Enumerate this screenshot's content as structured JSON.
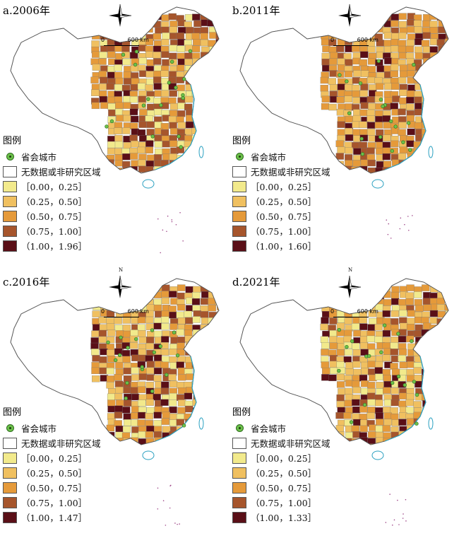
{
  "panels": [
    {
      "title": "a.2006年",
      "legend_title": "图例",
      "legend": [
        {
          "kind": "dot",
          "label": "省会城市"
        },
        {
          "kind": "swatch",
          "color": "#ffffff",
          "label": "无数据或非研究区域"
        },
        {
          "kind": "swatch",
          "color": "#f2ea8c",
          "label": "［0.00，0.25］"
        },
        {
          "kind": "swatch",
          "color": "#f0c060",
          "label": "（0.25，0.50］"
        },
        {
          "kind": "swatch",
          "color": "#e59a3a",
          "label": "（0.50，0.75］"
        },
        {
          "kind": "swatch",
          "color": "#a6552c",
          "label": "（0.75，1.00］"
        },
        {
          "kind": "swatch",
          "color": "#5a0f17",
          "label": "（1.00，1.96］"
        }
      ]
    },
    {
      "title": "b.2011年",
      "legend_title": "图例",
      "legend": [
        {
          "kind": "dot",
          "label": "省会城市"
        },
        {
          "kind": "swatch",
          "color": "#ffffff",
          "label": "无数据或非研究区域"
        },
        {
          "kind": "swatch",
          "color": "#f2ea8c",
          "label": "［0.00，0.25］"
        },
        {
          "kind": "swatch",
          "color": "#f0c060",
          "label": "（0.25，0.50］"
        },
        {
          "kind": "swatch",
          "color": "#e59a3a",
          "label": "（0.50，0.75］"
        },
        {
          "kind": "swatch",
          "color": "#a6552c",
          "label": "（0.75，1.00］"
        },
        {
          "kind": "swatch",
          "color": "#5a0f17",
          "label": "（1.00，1.60］"
        }
      ]
    },
    {
      "title": "c.2016年",
      "legend_title": "图例",
      "legend": [
        {
          "kind": "dot",
          "label": "省会城市"
        },
        {
          "kind": "swatch",
          "color": "#ffffff",
          "label": "无数据或非研究区域"
        },
        {
          "kind": "swatch",
          "color": "#f2ea8c",
          "label": "［0.00，0.25］"
        },
        {
          "kind": "swatch",
          "color": "#f0c060",
          "label": "（0.25，0.50］"
        },
        {
          "kind": "swatch",
          "color": "#e59a3a",
          "label": "（0.50，0.75］"
        },
        {
          "kind": "swatch",
          "color": "#a6552c",
          "label": "（0.75，1.00］"
        },
        {
          "kind": "swatch",
          "color": "#5a0f17",
          "label": "（1.00，1.47］"
        }
      ]
    },
    {
      "title": "d.2021年",
      "legend_title": "图例",
      "legend": [
        {
          "kind": "dot",
          "label": "省会城市"
        },
        {
          "kind": "swatch",
          "color": "#ffffff",
          "label": "无数据或非研究区域"
        },
        {
          "kind": "swatch",
          "color": "#f2ea8c",
          "label": "［0.00，0.25］"
        },
        {
          "kind": "swatch",
          "color": "#f0c060",
          "label": "（0.25，0.50］"
        },
        {
          "kind": "swatch",
          "color": "#e59a3a",
          "label": "（0.50，0.75］"
        },
        {
          "kind": "swatch",
          "color": "#a6552c",
          "label": "（0.75，1.00］"
        },
        {
          "kind": "swatch",
          "color": "#5a0f17",
          "label": "（1.00，1.33］"
        }
      ]
    }
  ],
  "north_label": "N",
  "scale": {
    "zero": "0",
    "distance": "600 km"
  }
}
